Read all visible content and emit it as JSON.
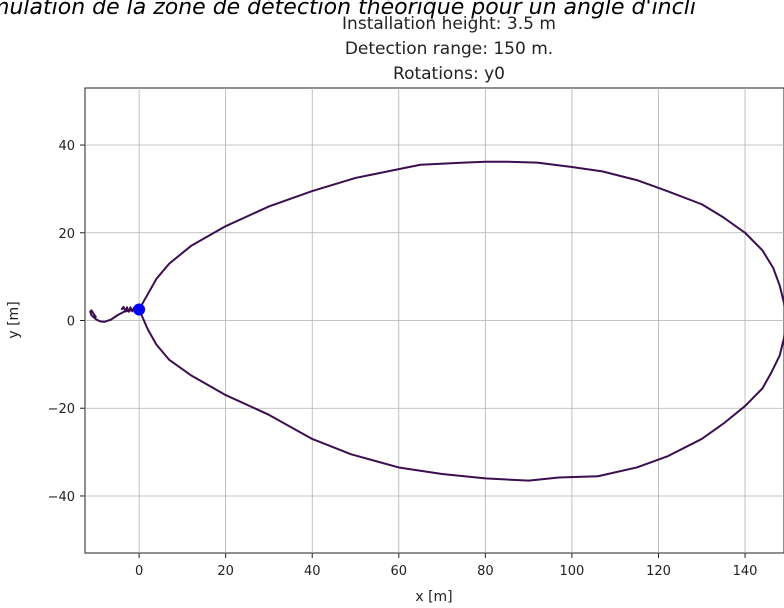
{
  "caption": "s simulation de la zone de détection théorique pour un angle d'incli",
  "chart_data": {
    "type": "line",
    "title_lines": [
      "Installation height: 3.5 m",
      "Detection range: 150 m.",
      "Rotations: y0"
    ],
    "xlabel": "x [m]",
    "ylabel": "y [m]",
    "xlim": [
      -12.5,
      149
    ],
    "ylim": [
      -53,
      53
    ],
    "xticks": [
      0,
      20,
      40,
      60,
      80,
      100,
      120,
      140
    ],
    "yticks": [
      -40,
      -20,
      0,
      20,
      40
    ],
    "xtick_labels": [
      "0",
      "20",
      "40",
      "60",
      "80",
      "100",
      "120",
      "140"
    ],
    "ytick_labels": [
      "−40",
      "−20",
      "0",
      "20",
      "40"
    ],
    "grid": true,
    "line_color": "#3b0f4f",
    "series": [
      {
        "x": [
          0,
          2,
          4,
          7,
          12,
          20,
          30,
          40,
          50,
          60,
          65,
          75,
          80,
          85,
          92,
          100,
          107,
          115,
          122,
          130,
          135,
          140,
          144,
          146.5,
          148,
          149,
          149.5,
          149,
          148,
          146,
          144,
          140,
          135,
          130,
          122,
          115,
          106,
          97,
          90,
          80,
          70,
          60,
          49,
          40,
          30,
          20,
          12,
          7,
          4,
          2,
          0
        ],
        "y": [
          2.5,
          6,
          9.5,
          13,
          17,
          21.5,
          26,
          29.5,
          32.5,
          34.5,
          35.5,
          36,
          36.2,
          36.2,
          36,
          35,
          34,
          32,
          29.5,
          26.5,
          23.5,
          20,
          16,
          12,
          8,
          4,
          0,
          -4,
          -8,
          -12,
          -15.5,
          -19.5,
          -23.5,
          -27,
          -31,
          -33.5,
          -35.5,
          -35.8,
          -36.5,
          -36,
          -35,
          -33.5,
          -30.5,
          -27,
          -21.5,
          -17,
          -12.5,
          -9,
          -5.5,
          -2,
          2.5
        ]
      },
      {
        "x": [
          0,
          -2,
          -3.5,
          -5,
          -6.5,
          -8,
          -9,
          -10,
          -11,
          -11.3,
          -11,
          -10.5,
          -10
        ],
        "y": [
          2.5,
          2.3,
          2,
          1.2,
          0.2,
          -0.3,
          -0.2,
          0.3,
          1.2,
          2.0,
          2.3,
          1.5,
          0.8
        ]
      },
      {
        "x": [
          -4,
          -3.6,
          -3.2,
          -2.8,
          -2.4,
          -2,
          -1.6,
          -1.2,
          -0.8,
          -0.4,
          0
        ],
        "y": [
          2.6,
          3.1,
          2.1,
          3.0,
          2.0,
          3.0,
          2.1,
          2.9,
          2.3,
          2.7,
          2.5
        ]
      }
    ],
    "marker": {
      "x": 0,
      "y": 2.5,
      "color": "#0000ff"
    }
  }
}
